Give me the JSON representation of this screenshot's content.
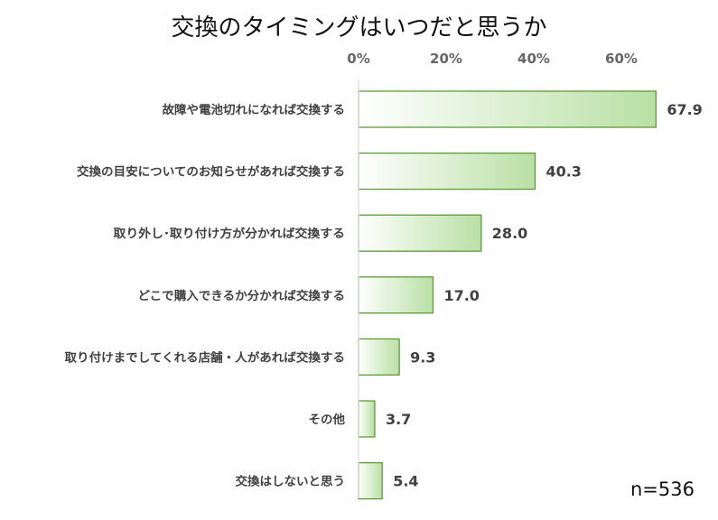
{
  "chart_data": {
    "type": "bar",
    "orientation": "horizontal",
    "title": "交換のタイミングはいつだと思うか",
    "categories": [
      "故障や電池切れになれば交換する",
      "交換の目安についてのお知らせがあれば交換する",
      "取り外し･取り付け方が分かれば交換する",
      "どこで購入できるか分かれば交換する",
      "取り付けまでしてくれる店舗・人があれば交換する",
      "その他",
      "交換はしないと思う"
    ],
    "values": [
      67.9,
      40.3,
      28.0,
      17.0,
      9.3,
      3.7,
      5.4
    ],
    "value_labels": [
      "67.9",
      "40.3",
      "28.0",
      "17.0",
      "9.3",
      "3.7",
      "5.4"
    ],
    "x_ticks": [
      "0%",
      "20%",
      "40%",
      "60%"
    ],
    "xlim": [
      0,
      70
    ],
    "x_axis_position": "top",
    "grid": false,
    "bar_gradient": [
      "#ffffff",
      "#b9e0a5"
    ],
    "bar_border_color": "#5e9a3a",
    "note": "n=536"
  }
}
